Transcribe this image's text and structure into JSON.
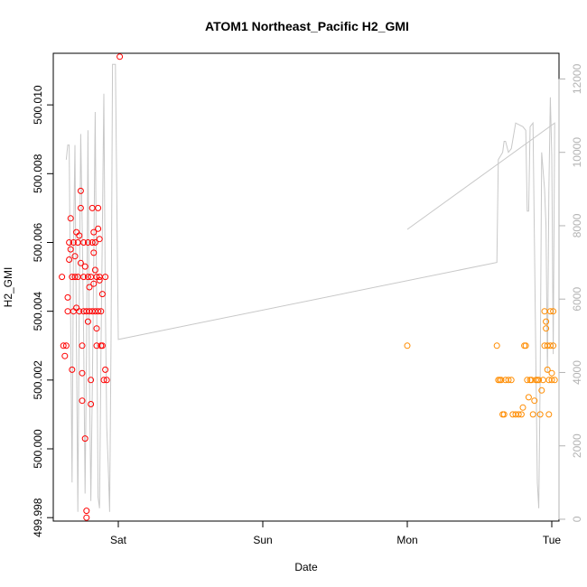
{
  "chart_data": {
    "type": "scatter",
    "title": "ATOM1 Northeast_Pacific H2_GMI",
    "xlabel": "Date",
    "ylabel": "H2_GMI",
    "xlim": [
      -0.45,
      3.05
    ],
    "ylim": [
      499.9979,
      500.0115
    ],
    "y2lim": [
      -50,
      12700
    ],
    "x_ticks": [
      {
        "value": 0,
        "label": "Sat"
      },
      {
        "value": 1,
        "label": "Sun"
      },
      {
        "value": 2,
        "label": "Mon"
      },
      {
        "value": 3,
        "label": "Tue"
      }
    ],
    "y_ticks": [
      "499.998",
      "500.000",
      "500.002",
      "500.004",
      "500.006",
      "500.008",
      "500.010"
    ],
    "y2_ticks": [
      "0",
      "2000",
      "4000",
      "6000",
      "8000",
      "10000",
      "12000"
    ],
    "grid": false,
    "series": [
      {
        "color": "#ff0000",
        "marker": "open-circle",
        "points": [
          [
            -0.39,
            500.005
          ],
          [
            -0.38,
            500.003
          ],
          [
            -0.37,
            500.0027
          ],
          [
            -0.36,
            500.003
          ],
          [
            -0.35,
            500.004
          ],
          [
            -0.35,
            500.0044
          ],
          [
            -0.34,
            500.0055
          ],
          [
            -0.34,
            500.006
          ],
          [
            -0.33,
            500.0067
          ],
          [
            -0.33,
            500.0058
          ],
          [
            -0.32,
            500.0023
          ],
          [
            -0.32,
            500.005
          ],
          [
            -0.31,
            500.004
          ],
          [
            -0.31,
            500.006
          ],
          [
            -0.3,
            500.0056
          ],
          [
            -0.3,
            500.005
          ],
          [
            -0.29,
            500.0041
          ],
          [
            -0.29,
            500.0063
          ],
          [
            -0.28,
            500.006
          ],
          [
            -0.28,
            500.005
          ],
          [
            -0.27,
            500.004
          ],
          [
            -0.27,
            500.0062
          ],
          [
            -0.26,
            500.0075
          ],
          [
            -0.26,
            500.007
          ],
          [
            -0.26,
            500.0054
          ],
          [
            -0.25,
            500.0014
          ],
          [
            -0.25,
            500.0022
          ],
          [
            -0.25,
            500.003
          ],
          [
            -0.24,
            500.005
          ],
          [
            -0.24,
            500.006
          ],
          [
            -0.24,
            500.004
          ],
          [
            -0.23,
            500.0053
          ],
          [
            -0.23,
            500.0003
          ],
          [
            -0.22,
            500.004
          ],
          [
            -0.22,
            499.9982
          ],
          [
            -0.22,
            499.998
          ],
          [
            -0.21,
            500.0037
          ],
          [
            -0.21,
            500.005
          ],
          [
            -0.21,
            500.006
          ],
          [
            -0.2,
            500.004
          ],
          [
            -0.2,
            500.0047
          ],
          [
            -0.19,
            500.005
          ],
          [
            -0.19,
            500.0013
          ],
          [
            -0.19,
            500.002
          ],
          [
            -0.18,
            500.004
          ],
          [
            -0.18,
            500.006
          ],
          [
            -0.18,
            500.007
          ],
          [
            -0.17,
            500.0057
          ],
          [
            -0.17,
            500.0063
          ],
          [
            -0.17,
            500.0048
          ],
          [
            -0.16,
            500.004
          ],
          [
            -0.16,
            500.006
          ],
          [
            -0.16,
            500.0052
          ],
          [
            -0.15,
            500.005
          ],
          [
            -0.15,
            500.0035
          ],
          [
            -0.15,
            500.003
          ],
          [
            -0.14,
            500.004
          ],
          [
            -0.14,
            500.0064
          ],
          [
            -0.14,
            500.007
          ],
          [
            -0.13,
            500.005
          ],
          [
            -0.13,
            500.0061
          ],
          [
            -0.13,
            500.0049
          ],
          [
            -0.12,
            500.003
          ],
          [
            -0.12,
            500.004
          ],
          [
            -0.11,
            500.0045
          ],
          [
            -0.11,
            500.003
          ],
          [
            -0.1,
            500.002
          ],
          [
            -0.09,
            500.005
          ],
          [
            -0.09,
            500.0023
          ],
          [
            -0.08,
            500.002
          ],
          [
            0.01,
            500.0114
          ]
        ]
      },
      {
        "color": "#ff8c00",
        "marker": "open-circle",
        "points": [
          [
            2.0,
            500.003
          ],
          [
            2.62,
            500.003
          ],
          [
            2.63,
            500.002
          ],
          [
            2.64,
            500.002
          ],
          [
            2.65,
            500.002
          ],
          [
            2.66,
            500.001
          ],
          [
            2.67,
            500.001
          ],
          [
            2.68,
            500.002
          ],
          [
            2.7,
            500.002
          ],
          [
            2.72,
            500.002
          ],
          [
            2.73,
            500.001
          ],
          [
            2.75,
            500.001
          ],
          [
            2.77,
            500.001
          ],
          [
            2.79,
            500.001
          ],
          [
            2.8,
            500.0012
          ],
          [
            2.81,
            500.003
          ],
          [
            2.82,
            500.003
          ],
          [
            2.83,
            500.002
          ],
          [
            2.84,
            500.0015
          ],
          [
            2.85,
            500.002
          ],
          [
            2.86,
            500.002
          ],
          [
            2.87,
            500.001
          ],
          [
            2.88,
            500.0014
          ],
          [
            2.89,
            500.002
          ],
          [
            2.9,
            500.002
          ],
          [
            2.91,
            500.002
          ],
          [
            2.92,
            500.001
          ],
          [
            2.93,
            500.0017
          ],
          [
            2.94,
            500.002
          ],
          [
            2.95,
            500.003
          ],
          [
            2.95,
            500.004
          ],
          [
            2.96,
            500.0037
          ],
          [
            2.96,
            500.0035
          ],
          [
            2.97,
            500.003
          ],
          [
            2.97,
            500.0023
          ],
          [
            2.98,
            500.001
          ],
          [
            2.98,
            500.002
          ],
          [
            2.99,
            500.004
          ],
          [
            2.99,
            500.003
          ],
          [
            3.0,
            500.002
          ],
          [
            3.0,
            500.0022
          ],
          [
            3.01,
            500.004
          ],
          [
            3.01,
            500.003
          ],
          [
            3.02,
            500.002
          ]
        ]
      },
      {
        "color": "#c8c8c8",
        "type": "line",
        "axis": "right",
        "points": [
          [
            -0.36,
            9800
          ],
          [
            -0.35,
            10200
          ],
          [
            -0.34,
            10200
          ],
          [
            -0.33,
            5500
          ],
          [
            -0.32,
            1000
          ],
          [
            -0.31,
            7500
          ],
          [
            -0.3,
            10200
          ],
          [
            -0.29,
            5000
          ],
          [
            -0.28,
            200
          ],
          [
            -0.27,
            6000
          ],
          [
            -0.26,
            10500
          ],
          [
            -0.25,
            8000
          ],
          [
            -0.24,
            5000
          ],
          [
            -0.23,
            700
          ],
          [
            -0.22,
            4500
          ],
          [
            -0.21,
            10600
          ],
          [
            -0.2,
            4000
          ],
          [
            -0.19,
            500
          ],
          [
            -0.18,
            3500
          ],
          [
            -0.17,
            7000
          ],
          [
            -0.16,
            11100
          ],
          [
            -0.15,
            6000
          ],
          [
            -0.14,
            600
          ],
          [
            -0.13,
            300
          ],
          [
            -0.12,
            4500
          ],
          [
            -0.11,
            8000
          ],
          [
            -0.1,
            11600
          ],
          [
            -0.09,
            6000
          ],
          [
            -0.08,
            2500
          ],
          [
            -0.07,
            1500
          ],
          [
            -0.06,
            200
          ],
          [
            -0.05,
            5000
          ],
          [
            -0.04,
            12400
          ],
          [
            -0.02,
            12400
          ],
          [
            0.0,
            4900
          ],
          [
            2.62,
            7000
          ],
          [
            2.63,
            9800
          ],
          [
            2.66,
            10000
          ],
          [
            2.67,
            10300
          ],
          [
            2.68,
            10300
          ],
          [
            2.7,
            10000
          ],
          [
            2.72,
            10100
          ],
          [
            2.75,
            10800
          ],
          [
            2.8,
            10700
          ],
          [
            2.82,
            10600
          ],
          [
            2.83,
            8400
          ],
          [
            2.84,
            8400
          ],
          [
            2.85,
            10700
          ],
          [
            2.87,
            10800
          ],
          [
            2.9,
            1000
          ],
          [
            2.91,
            300
          ],
          [
            2.92,
            4000
          ],
          [
            2.93,
            10000
          ],
          [
            2.95,
            9000
          ],
          [
            2.96,
            8000
          ],
          [
            2.97,
            4000
          ],
          [
            2.98,
            9000
          ],
          [
            2.99,
            11500
          ],
          [
            3.0,
            9900
          ],
          [
            3.01,
            4500
          ],
          [
            3.02,
            10800
          ],
          [
            3.02,
            10800
          ],
          [
            2.0,
            7900
          ]
        ]
      }
    ]
  }
}
